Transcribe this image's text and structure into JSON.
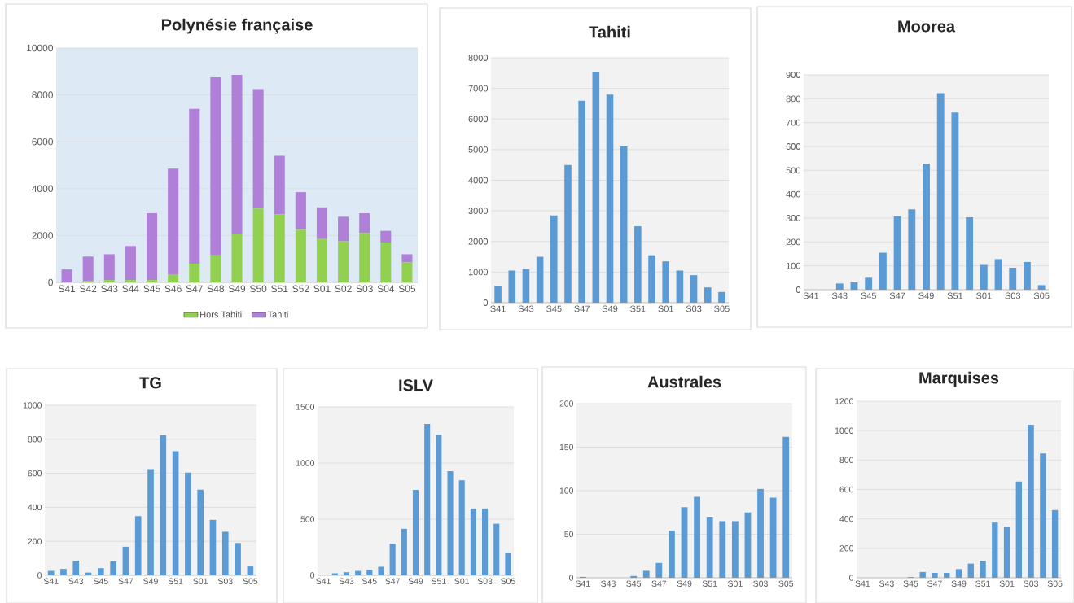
{
  "chart_data": [
    {
      "type": "bar",
      "title": "Polynésie française",
      "categories": [
        "S41",
        "S42",
        "S43",
        "S44",
        "S45",
        "S46",
        "S47",
        "S48",
        "S49",
        "S50",
        "S51",
        "S52",
        "S01",
        "S02",
        "S03",
        "S04",
        "S05"
      ],
      "stacked": true,
      "legend": "bottom",
      "grid": "y",
      "ylim": [
        0,
        10000
      ],
      "yticks": [
        0,
        2000,
        4000,
        6000,
        8000,
        10000
      ],
      "series": [
        {
          "name": "Hors Tahiti",
          "color": "#92d050",
          "values": [
            null,
            50,
            100,
            100,
            100,
            350,
            800,
            1150,
            2050,
            3150,
            2900,
            2250,
            1850,
            1750,
            2100,
            1700,
            850
          ]
        },
        {
          "name": "Tahiti",
          "color": "#b07fd8",
          "values": [
            550,
            1050,
            1100,
            1450,
            2850,
            4500,
            6600,
            7600,
            6800,
            5100,
            2500,
            1600,
            1350,
            1050,
            850,
            500,
            350
          ]
        }
      ]
    },
    {
      "type": "bar",
      "title": "Tahiti",
      "categories": [
        "S41",
        null,
        "S43",
        null,
        "S45",
        null,
        "S47",
        null,
        "S49",
        null,
        "S51",
        null,
        "S01",
        null,
        "S03",
        null,
        "S05"
      ],
      "grid": "y",
      "ylim": [
        0,
        8000
      ],
      "yticks": [
        0,
        1000,
        2000,
        3000,
        4000,
        5000,
        6000,
        7000,
        8000
      ],
      "color": "#5b9bd5",
      "values": [
        550,
        1050,
        1100,
        1500,
        2850,
        4500,
        6600,
        7550,
        6800,
        5100,
        2500,
        1550,
        1350,
        1050,
        900,
        500,
        350
      ]
    },
    {
      "type": "bar",
      "title": "Moorea",
      "categories": [
        "S41",
        null,
        "S43",
        null,
        "S45",
        null,
        "S47",
        null,
        "S49",
        null,
        "S51",
        null,
        "S01",
        null,
        "S03",
        null,
        "S05"
      ],
      "grid": "y",
      "ylim": [
        0,
        900
      ],
      "yticks": [
        0,
        100,
        200,
        300,
        400,
        500,
        600,
        700,
        800,
        900
      ],
      "color": "#5b9bd5",
      "values": [
        0,
        0,
        26,
        31,
        50,
        155,
        308,
        337,
        528,
        823,
        742,
        303,
        104,
        128,
        92,
        116,
        19
      ]
    },
    {
      "type": "bar",
      "title": "TG",
      "categories": [
        "S41",
        null,
        "S43",
        null,
        "S45",
        null,
        "S47",
        null,
        "S49",
        null,
        "S51",
        null,
        "S01",
        null,
        "S03",
        null,
        "S05"
      ],
      "grid": "y",
      "ylim": [
        0,
        1000
      ],
      "yticks": [
        0,
        200,
        400,
        600,
        800,
        1000
      ],
      "color": "#5b9bd5",
      "values": [
        26,
        38,
        86,
        16,
        42,
        82,
        168,
        348,
        624,
        824,
        730,
        604,
        504,
        326,
        256,
        190,
        52
      ]
    },
    {
      "type": "bar",
      "title": "ISLV",
      "categories": [
        "S41",
        null,
        "S43",
        null,
        "S45",
        null,
        "S47",
        null,
        "S49",
        null,
        "S51",
        null,
        "S01",
        null,
        "S03",
        null,
        "S05"
      ],
      "grid": "y",
      "ylim": [
        0,
        1500
      ],
      "yticks": [
        0,
        500,
        1000,
        1500
      ],
      "color": "#5b9bd5",
      "values": [
        0,
        18,
        27,
        39,
        48,
        76,
        281,
        414,
        761,
        1347,
        1251,
        927,
        846,
        595,
        595,
        459,
        196
      ]
    },
    {
      "type": "bar",
      "title": "Australes",
      "categories": [
        "S41",
        null,
        "S43",
        null,
        "S45",
        null,
        "S47",
        null,
        "S49",
        null,
        "S51",
        null,
        "S01",
        null,
        "S03",
        null,
        "S05"
      ],
      "grid": "y",
      "ylim": [
        0,
        200
      ],
      "yticks": [
        0,
        50,
        100,
        150,
        200
      ],
      "color": "#5b9bd5",
      "values": [
        1,
        0,
        0,
        0,
        2,
        8,
        17,
        54,
        81,
        93,
        70,
        65,
        65,
        75,
        102,
        92,
        162
      ]
    },
    {
      "type": "bar",
      "title": "Marquises",
      "categories": [
        "S41",
        null,
        "S43",
        null,
        "S45",
        null,
        "S47",
        null,
        "S49",
        null,
        "S51",
        null,
        "S01",
        null,
        "S03",
        null,
        "S05"
      ],
      "grid": "y",
      "ylim": [
        0,
        1200
      ],
      "yticks": [
        0,
        200,
        400,
        600,
        800,
        1000,
        1200
      ],
      "color": "#5b9bd5",
      "values": [
        0,
        0,
        0,
        null,
        5,
        39,
        33,
        33,
        59,
        96,
        116,
        375,
        347,
        654,
        1039,
        845,
        460
      ]
    }
  ]
}
